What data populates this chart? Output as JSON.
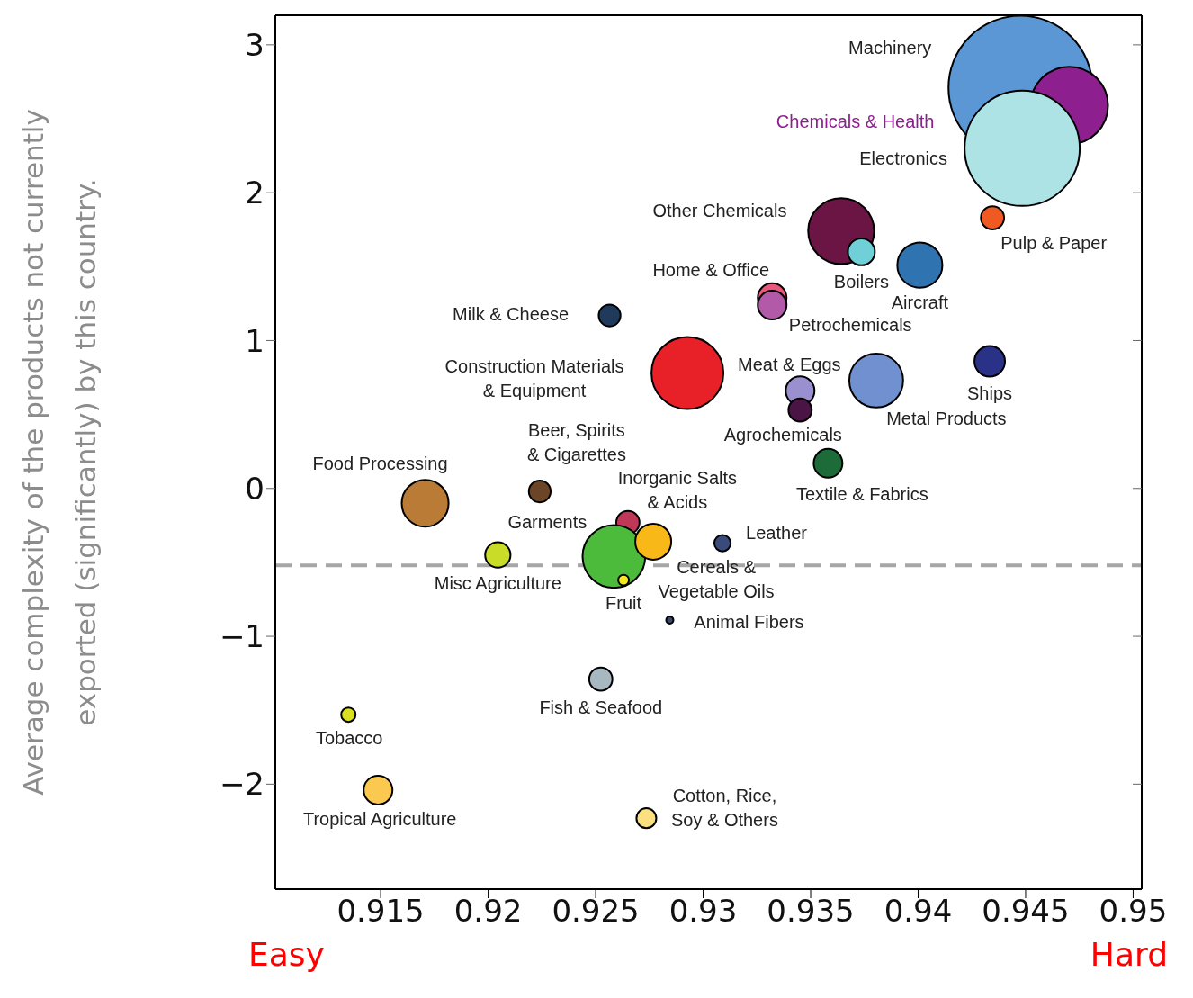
{
  "chart_data": {
    "type": "bubble",
    "ylabel": "Average complexity of the products not currently\nexported (significantly) by this country.",
    "xlim": [
      0.9101,
      0.9504
    ],
    "xticks": [
      0.915,
      0.92,
      0.925,
      0.93,
      0.935,
      0.94,
      0.945,
      0.95
    ],
    "ylim": [
      -2.71,
      3.2
    ],
    "yticks": [
      {
        "value": -2,
        "label": "−2"
      },
      {
        "value": -1,
        "label": "−1"
      },
      0,
      1,
      2,
      3
    ],
    "ref_lines": [
      {
        "axis": "y",
        "value": -0.52,
        "color": "#a6a6a6",
        "line_style": "dashed"
      }
    ],
    "annotations": [
      "Easy",
      "Hard"
    ],
    "series": [
      {
        "name": "Machinery",
        "color": "#5b97d5",
        "x": [
          0.94476
        ],
        "values": [
          2.71
        ],
        "sizes": [
          1
        ]
      },
      {
        "name": "Chemicals & Health",
        "color": "#8e1f8f",
        "x": [
          0.94703
        ],
        "values": [
          2.59
        ],
        "sizes": [
          0.29
        ]
      },
      {
        "name": "Electronics",
        "color": "#aee3e6",
        "x": [
          0.94484
        ],
        "values": [
          2.3
        ],
        "sizes": [
          0.64
        ]
      },
      {
        "name": "Pulp & Paper",
        "color": "#f05a22",
        "x": [
          0.94346
        ],
        "values": [
          1.83
        ],
        "sizes": [
          0.026
        ]
      },
      {
        "name": "Other Chemicals",
        "color": "#6b1545",
        "x": [
          0.93642
        ],
        "values": [
          1.74
        ],
        "sizes": [
          0.21
        ]
      },
      {
        "name": "Boilers",
        "color": "#6fd0d8",
        "x": [
          0.93736
        ],
        "values": [
          1.6
        ],
        "sizes": [
          0.035
        ]
      },
      {
        "name": "Aircraft",
        "color": "#2f74b0",
        "x": [
          0.94008
        ],
        "values": [
          1.51
        ],
        "sizes": [
          0.098
        ]
      },
      {
        "name": "Home & Office",
        "color": "#e8587a",
        "x": [
          0.93321
        ],
        "values": [
          1.29
        ],
        "sizes": [
          0.04
        ]
      },
      {
        "name": "Petrochemicals",
        "color": "#b25aa8",
        "x": [
          0.93321
        ],
        "values": [
          1.24
        ],
        "sizes": [
          0.04
        ]
      },
      {
        "name": "Milk & Cheese",
        "color": "#1f3a5a",
        "x": [
          0.92565
        ],
        "values": [
          1.17
        ],
        "sizes": [
          0.023
        ]
      },
      {
        "name": "Construction Materials\n& Equipment",
        "color": "#e82028",
        "x": [
          0.92927
        ],
        "values": [
          0.78
        ],
        "sizes": [
          0.25
        ]
      },
      {
        "name": "Meat & Eggs",
        "color": "#9a8fcf",
        "x": [
          0.93451
        ],
        "values": [
          0.66
        ],
        "sizes": [
          0.04
        ]
      },
      {
        "name": "Agrochemicals",
        "color": "#4a1445",
        "x": [
          0.93451
        ],
        "values": [
          0.53
        ],
        "sizes": [
          0.026
        ]
      },
      {
        "name": "Metal Products",
        "color": "#7090d0",
        "x": [
          0.93805
        ],
        "values": [
          0.73
        ],
        "sizes": [
          0.14
        ]
      },
      {
        "name": "Ships",
        "color": "#2a3287",
        "x": [
          0.94333
        ],
        "values": [
          0.86
        ],
        "sizes": [
          0.045
        ]
      },
      {
        "name": "Textile & Fabrics",
        "color": "#1e6b3a",
        "x": [
          0.93581
        ],
        "values": [
          0.17
        ],
        "sizes": [
          0.04
        ]
      },
      {
        "name": "Food Processing",
        "color": "#b97b35",
        "x": [
          0.91707
        ],
        "values": [
          -0.1
        ],
        "sizes": [
          0.106
        ]
      },
      {
        "name": "Beer, Spirits\n& Cigarettes",
        "color": "#6b4525",
        "x": [
          0.9224
        ],
        "values": [
          -0.02
        ],
        "sizes": [
          0.023
        ]
      },
      {
        "name": "Inorganic Salts\n& Acids",
        "color": "#c03858",
        "x": [
          0.9265
        ],
        "values": [
          -0.23
        ],
        "sizes": [
          0.026
        ]
      },
      {
        "name": "Garments",
        "color": "#4cbb3c",
        "x": [
          0.92585
        ],
        "values": [
          -0.46
        ],
        "sizes": [
          0.19
        ]
      },
      {
        "name": "Cereals &\nVegetable Oils",
        "color": "#f8b818",
        "x": [
          0.92768
        ],
        "values": [
          -0.36
        ],
        "sizes": [
          0.0625
        ]
      },
      {
        "name": "Leather",
        "color": "#3a4a7a",
        "x": [
          0.9309
        ],
        "values": [
          -0.37
        ],
        "sizes": [
          0.013
        ]
      },
      {
        "name": "Misc Agriculture",
        "color": "#c8dc28",
        "x": [
          0.92045
        ],
        "values": [
          -0.45
        ],
        "sizes": [
          0.031
        ]
      },
      {
        "name": "Fruit",
        "color": "#f5e820",
        "x": [
          0.9263
        ],
        "values": [
          -0.62
        ],
        "sizes": [
          0.0056
        ]
      },
      {
        "name": "Animal Fibers",
        "color": "#3a4a6a",
        "x": [
          0.92845
        ],
        "values": [
          -0.89
        ],
        "sizes": [
          0.0025
        ]
      },
      {
        "name": "Fish & Seafood",
        "color": "#a8b8c0",
        "x": [
          0.92524
        ],
        "values": [
          -1.29
        ],
        "sizes": [
          0.026
        ]
      },
      {
        "name": "Tobacco",
        "color": "#d8e020",
        "x": [
          0.9135
        ],
        "values": [
          -1.53
        ],
        "sizes": [
          0.01
        ]
      },
      {
        "name": "Tropical Agriculture",
        "color": "#fbc850",
        "x": [
          0.91488
        ],
        "values": [
          -2.04
        ],
        "sizes": [
          0.04
        ]
      },
      {
        "name": "Cotton, Rice,\nSoy & Others",
        "color": "#fbe080",
        "x": [
          0.92736
        ],
        "values": [
          -2.23
        ],
        "sizes": [
          0.019
        ]
      }
    ]
  }
}
